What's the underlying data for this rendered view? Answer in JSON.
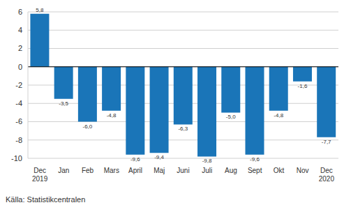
{
  "chart_data": {
    "type": "bar",
    "categories": [
      "Dec\n2019",
      "Jan",
      "Feb",
      "Mars",
      "April",
      "Maj",
      "Juni",
      "Juli",
      "Aug",
      "Sept",
      "Okt",
      "Nov",
      "Dec\n2020"
    ],
    "values": [
      5.8,
      -3.5,
      -6.0,
      -4.8,
      -9.6,
      -9.4,
      -6.3,
      -9.8,
      -5.0,
      -9.6,
      -4.8,
      -1.6,
      -7.7
    ],
    "value_labels": [
      "5,8",
      "-3,5",
      "-6,0",
      "-4,8",
      "-9,6",
      "-9,4",
      "-6,3",
      "-9,8",
      "-5,0",
      "-9,6",
      "-4,8",
      "-1,6",
      "-7,7"
    ],
    "color": "#1a75b8",
    "ylim": [
      -10,
      6
    ],
    "yticks": [
      -10,
      -8,
      -6,
      -4,
      -2,
      0,
      2,
      4,
      6
    ],
    "grid": true,
    "data_labels": true,
    "source": "Källa: Statistikcentralen"
  }
}
